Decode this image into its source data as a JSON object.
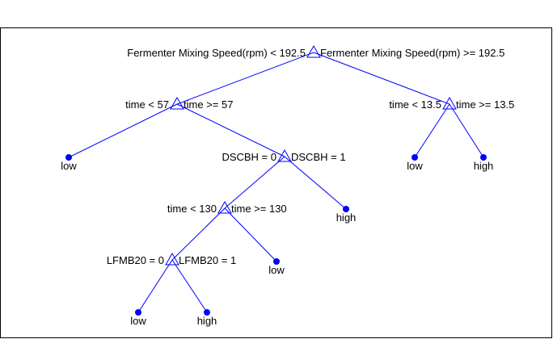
{
  "colors": {
    "edge": "#0000ff",
    "leaf": "#0000ff",
    "text": "#000000",
    "frame": "#000000"
  },
  "tree": {
    "nodes": [
      {
        "id": "n0",
        "type": "split",
        "left_label": "Fermenter Mixing Speed(rpm) < 192.5",
        "right_label": "Fermenter Mixing Speed(rpm) >= 192.5"
      },
      {
        "id": "n1",
        "type": "split",
        "left_label": "time < 57",
        "right_label": "time >= 57"
      },
      {
        "id": "n2",
        "type": "split",
        "left_label": "time < 13.5",
        "right_label": "time >= 13.5"
      },
      {
        "id": "leaf-low-1",
        "type": "leaf",
        "label": "low"
      },
      {
        "id": "n3",
        "type": "split",
        "left_label": "DSCBH = 0",
        "right_label": "DSCBH = 1"
      },
      {
        "id": "leaf-low-2",
        "type": "leaf",
        "label": "low"
      },
      {
        "id": "leaf-high-1",
        "type": "leaf",
        "label": "high"
      },
      {
        "id": "n4",
        "type": "split",
        "left_label": "time < 130",
        "right_label": "time >= 130"
      },
      {
        "id": "leaf-high-2",
        "type": "leaf",
        "label": "high"
      },
      {
        "id": "n5",
        "type": "split",
        "left_label": "LFMB20 = 0",
        "right_label": "LFMB20 = 1"
      },
      {
        "id": "leaf-low-3",
        "type": "leaf",
        "label": "low"
      },
      {
        "id": "leaf-low-4",
        "type": "leaf",
        "label": "low"
      },
      {
        "id": "leaf-high-3",
        "type": "leaf",
        "label": "high"
      }
    ],
    "edges": [
      [
        "n0",
        "n1"
      ],
      [
        "n0",
        "n2"
      ],
      [
        "n1",
        "leaf-low-1"
      ],
      [
        "n1",
        "n3"
      ],
      [
        "n2",
        "leaf-low-2"
      ],
      [
        "n2",
        "leaf-high-1"
      ],
      [
        "n3",
        "n4"
      ],
      [
        "n3",
        "leaf-high-2"
      ],
      [
        "n4",
        "n5"
      ],
      [
        "n4",
        "leaf-low-3"
      ],
      [
        "n5",
        "leaf-low-4"
      ],
      [
        "n5",
        "leaf-high-3"
      ]
    ]
  }
}
